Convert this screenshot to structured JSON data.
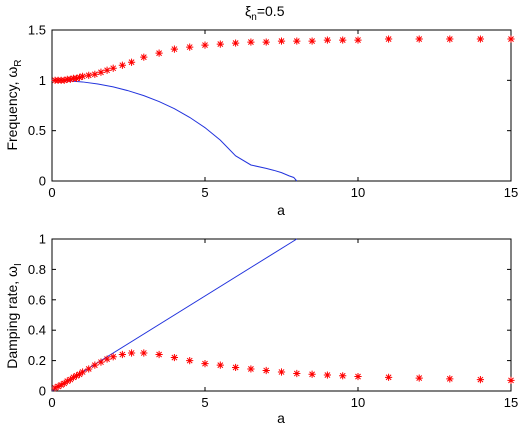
{
  "figure": {
    "title_main": "ξ",
    "title_sub": "n",
    "title_rest": "=0.5"
  },
  "colors": {
    "analytic": "#2233dd",
    "numeric": "#ff0000",
    "axes": "#000000"
  },
  "chart_data": [
    {
      "type": "line",
      "xlabel": "a",
      "ylabel_main": "Frequency, ω",
      "ylabel_sub": "R",
      "xlim": [
        0,
        15
      ],
      "ylim": [
        0,
        1.5
      ],
      "xticks": [
        "0",
        "5",
        "10",
        "15"
      ],
      "xtick_values": [
        0,
        5,
        10,
        15
      ],
      "yticks": [
        "0",
        "0.5",
        "1",
        "1.5"
      ],
      "ytick_values": [
        0,
        0.5,
        1,
        1.5
      ],
      "series": [
        {
          "style": "line",
          "x": [
            0,
            0.5,
            1,
            1.5,
            2,
            2.5,
            3,
            3.5,
            4,
            4.5,
            5,
            5.5,
            6,
            6.5,
            7,
            7.25,
            7.5,
            7.75,
            7.9,
            8
          ],
          "y": [
            1.0,
            0.996,
            0.984,
            0.964,
            0.935,
            0.896,
            0.848,
            0.789,
            0.718,
            0.632,
            0.53,
            0.406,
            0.25,
            0.159,
            0.125,
            0.106,
            0.083,
            0.051,
            0.035,
            0.0
          ]
        },
        {
          "style": "star",
          "x": [
            0.1,
            0.2,
            0.3,
            0.4,
            0.5,
            0.6,
            0.7,
            0.8,
            0.9,
            1.0,
            1.2,
            1.4,
            1.6,
            1.8,
            2.0,
            2.3,
            2.6,
            3.0,
            3.5,
            4.0,
            4.5,
            5.0,
            5.5,
            6.0,
            6.5,
            7.0,
            7.5,
            8.0,
            8.5,
            9.0,
            9.5,
            10.0,
            11.0,
            12.0,
            13.0,
            14.0,
            15.0
          ],
          "y": [
            1.0,
            1.0,
            1.0,
            1.0,
            1.01,
            1.01,
            1.02,
            1.02,
            1.03,
            1.04,
            1.05,
            1.06,
            1.08,
            1.1,
            1.12,
            1.15,
            1.18,
            1.23,
            1.27,
            1.31,
            1.33,
            1.35,
            1.36,
            1.37,
            1.38,
            1.38,
            1.39,
            1.39,
            1.39,
            1.4,
            1.4,
            1.4,
            1.41,
            1.41,
            1.41,
            1.41,
            1.41
          ]
        }
      ]
    },
    {
      "type": "line",
      "xlabel": "a",
      "ylabel_main": "Damping rate, ω",
      "ylabel_sub": "I",
      "xlim": [
        0,
        15
      ],
      "ylim": [
        0,
        1
      ],
      "xticks": [
        "0",
        "5",
        "10",
        "15"
      ],
      "xtick_values": [
        0,
        5,
        10,
        15
      ],
      "yticks": [
        "0",
        "0.2",
        "0.4",
        "0.6",
        "0.8",
        "1"
      ],
      "ytick_values": [
        0,
        0.2,
        0.4,
        0.6,
        0.8,
        1
      ],
      "series": [
        {
          "style": "line",
          "x": [
            0,
            8
          ],
          "y": [
            0,
            1
          ]
        },
        {
          "style": "star",
          "x": [
            0.1,
            0.2,
            0.3,
            0.4,
            0.5,
            0.6,
            0.7,
            0.8,
            0.9,
            1.0,
            1.2,
            1.4,
            1.6,
            1.8,
            2.0,
            2.3,
            2.6,
            3.0,
            3.5,
            4.0,
            4.5,
            5.0,
            5.5,
            6.0,
            6.5,
            7.0,
            7.5,
            8.0,
            8.5,
            9.0,
            9.5,
            10.0,
            11.0,
            12.0,
            13.0,
            14.0,
            15.0
          ],
          "y": [
            0.02,
            0.03,
            0.04,
            0.05,
            0.065,
            0.075,
            0.09,
            0.1,
            0.11,
            0.125,
            0.145,
            0.17,
            0.19,
            0.21,
            0.225,
            0.24,
            0.25,
            0.25,
            0.24,
            0.22,
            0.2,
            0.18,
            0.17,
            0.155,
            0.145,
            0.135,
            0.125,
            0.115,
            0.11,
            0.105,
            0.1,
            0.095,
            0.09,
            0.085,
            0.08,
            0.075,
            0.07
          ]
        }
      ]
    }
  ]
}
